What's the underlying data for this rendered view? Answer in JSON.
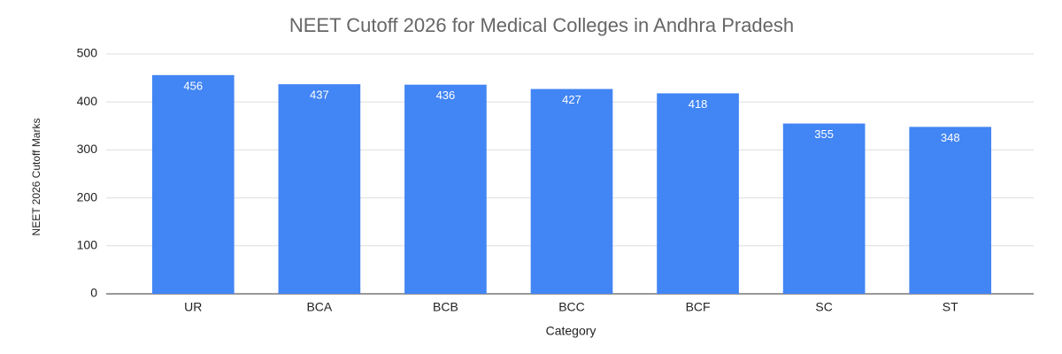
{
  "chart_data": {
    "type": "bar",
    "title": "NEET Cutoff 2026 for Medical Colleges in Andhra Pradesh",
    "x_label": "Category",
    "y_label": "NEET 2026 Cutoff Marks",
    "categories": [
      "UR",
      "BCA",
      "BCB",
      "BCC",
      "BCF",
      "SC",
      "ST"
    ],
    "values": [
      456,
      437,
      436,
      427,
      418,
      355,
      348
    ],
    "color": "#4285f4",
    "ylim": [
      0,
      500
    ],
    "yticks": [
      0,
      100,
      200,
      300,
      400,
      500
    ],
    "grid": true,
    "data_labels": true
  }
}
